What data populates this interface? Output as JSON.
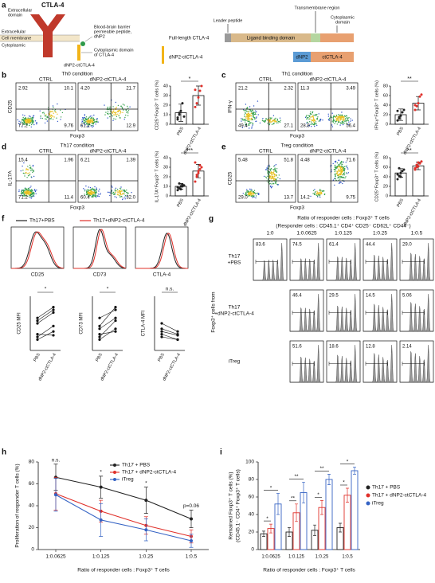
{
  "panel_a": {
    "letter": "a",
    "protein": "CTLA-4",
    "extracellular_domain": [
      "Extracellular",
      "domain"
    ],
    "extracellular": "Extracellular",
    "cell_membrane": "Cell membrane",
    "cytoplasmic": "Cytoplasmic",
    "fusion_label": "dNP2-ctCTLA-4",
    "peptide_note": [
      "Blood-brain barrier",
      "permeable peptide,",
      "dNP2"
    ],
    "cyto_note": [
      "Cytoplasmic domain",
      "of CTLA-4"
    ],
    "leader": "Leader peptide",
    "tm": "Transmembrane region",
    "cyto_domain": [
      "Cytoplasmic",
      "domain"
    ],
    "full_length": "Full-length CTLA-4",
    "lbd": "Ligand binding domain",
    "fusion": "dNP2-ctCTLA-4",
    "dnp2": "dNP2",
    "ctctla4": "ctCTLA-4"
  },
  "panel_b": {
    "letter": "b",
    "title": "Th0 condition",
    "columns": [
      "CTRL",
      "dNP2-ctCTLA-4"
    ],
    "y_label": "CD25",
    "x_label": "Foxp3",
    "quadrants": [
      [
        2.92,
        10.1,
        77.2,
        9.76
      ],
      [
        "4.20",
        21.7,
        61.2,
        12.9
      ]
    ],
    "bar_chart": {
      "type": "bar",
      "y_label": "CD25⁺Foxp3⁺ T cells (%)",
      "categories": [
        "PBS",
        "dNP2-ctCTLA-4"
      ],
      "point_colors": [
        "#222222",
        "#e0302a"
      ],
      "ylim": [
        0,
        40
      ],
      "yticks": [
        0,
        10,
        20,
        30,
        40
      ],
      "means": [
        12,
        30
      ],
      "sd": [
        9,
        10
      ],
      "points": [
        [
          5,
          10,
          14,
          22,
          8,
          7,
          12
        ],
        [
          18,
          22,
          28,
          35,
          40,
          36
        ]
      ],
      "significance": "*"
    }
  },
  "panel_c": {
    "letter": "c",
    "title": "Th1 condition",
    "columns": [
      "CTRL",
      "dNP2-ctCTLA-4"
    ],
    "y_label": "IFN-γ",
    "x_label": "Foxp3",
    "quadrants": [
      [
        21.2,
        2.32,
        49.4,
        27.1
      ],
      [
        11.3,
        3.49,
        28.8,
        56.4
      ]
    ],
    "bar_chart": {
      "type": "bar",
      "y_label": "IFN-γ⁺Foxp3⁺ T cells (%)",
      "categories": [
        "PBS",
        "dNP2-ctCTLA-4"
      ],
      "point_colors": [
        "#222222",
        "#e0302a"
      ],
      "ylim": [
        0,
        80
      ],
      "yticks": [
        0,
        20,
        40,
        60,
        80
      ],
      "means": [
        20,
        44
      ],
      "sd": [
        12,
        14
      ],
      "points": [
        [
          8,
          12,
          18,
          25,
          30,
          28,
          15
        ],
        [
          30,
          38,
          44,
          58,
          62,
          40
        ]
      ],
      "significance": "**"
    }
  },
  "panel_d": {
    "letter": "d",
    "title": "Th17 condition",
    "columns": [
      "CTRL",
      "dNP2-ctCTLA-4"
    ],
    "y_label": "IL-17A",
    "x_label": "Foxp3",
    "quadrants": [
      [
        15.4,
        1.96,
        71.2,
        11.4
      ],
      [
        6.21,
        1.39,
        60.4,
        "32.0"
      ]
    ],
    "bar_chart": {
      "type": "bar",
      "y_label": "IL-17A⁺Foxp3⁺ T cells (%)",
      "categories": [
        "PBS",
        "dNP2-ctCTLA-4"
      ],
      "point_colors": [
        "#222222",
        "#e0302a"
      ],
      "ylim": [
        0,
        40
      ],
      "yticks": [
        0,
        10,
        20,
        30,
        40
      ],
      "means": [
        10,
        26
      ],
      "sd": [
        3,
        7
      ],
      "points": [
        [
          6,
          8,
          10,
          12,
          11,
          9,
          13,
          7,
          10
        ],
        [
          15,
          20,
          24,
          28,
          30,
          35,
          22,
          26,
          32
        ]
      ],
      "significance": "***"
    }
  },
  "panel_e": {
    "letter": "e",
    "title": "Treg condition",
    "columns": [
      "CTRL",
      "dNP2-ctCTLA-4"
    ],
    "y_label": "CD25",
    "x_label": "Foxp3",
    "quadrants": [
      [
        5.48,
        51.8,
        "29.0",
        13.7
      ],
      [
        4.48,
        71.6,
        14.2,
        9.75
      ]
    ],
    "bar_chart": {
      "type": "bar",
      "y_label": "CD25⁺Foxp3⁺ T cells (%)",
      "categories": [
        "PBS",
        "dNP2-ctCTLA-4"
      ],
      "point_colors": [
        "#222222",
        "#e0302a"
      ],
      "ylim": [
        0,
        80
      ],
      "yticks": [
        0,
        20,
        40,
        60,
        80
      ],
      "means": [
        48,
        63
      ],
      "sd": [
        9,
        8
      ],
      "points": [
        [
          35,
          42,
          48,
          52,
          55,
          45,
          58,
          40
        ],
        [
          55,
          60,
          62,
          68,
          72,
          58,
          65,
          70
        ]
      ],
      "significance": "**"
    }
  },
  "panel_f": {
    "letter": "f",
    "legend": [
      {
        "name": "Th17+PBS",
        "color": "#222222"
      },
      {
        "name": "Th17+dNP2-ctCTLA-4",
        "color": "#e0302a"
      }
    ],
    "histogram_labels": [
      "CD25",
      "CD73",
      "CTLA-4"
    ],
    "mfi": {
      "type": "paired",
      "y_labels": [
        "CD25 MFI",
        "CD73 MFI",
        "CTLA-4 MFI"
      ],
      "categories": [
        "PBS",
        "dNP2-ctCTLA-4"
      ],
      "ylim": [
        0,
        100
      ],
      "significance": [
        "*",
        "*",
        "n.s."
      ],
      "pairs": [
        [
          [
            20,
            35
          ],
          [
            25,
            45
          ],
          [
            50,
            70
          ],
          [
            60,
            80
          ],
          [
            30,
            28
          ],
          [
            55,
            75
          ]
        ],
        [
          [
            20,
            40
          ],
          [
            30,
            35
          ],
          [
            40,
            60
          ],
          [
            45,
            80
          ],
          [
            60,
            75
          ],
          [
            25,
            55
          ]
        ],
        [
          [
            50,
            35
          ],
          [
            40,
            30
          ],
          [
            30,
            20
          ],
          [
            25,
            20
          ],
          [
            35,
            28
          ]
        ]
      ]
    }
  },
  "panel_g": {
    "letter": "g",
    "title": "Ratio of responder cells : Foxp3⁺ T cells",
    "subtitle": "(Responder cells : CD45.1⁺ CD4⁺ CD25⁻ CD62L⁺ CD44⁻)",
    "side_label": "Foxp3⁺ cells from",
    "columns": [
      "1:0",
      "1:0.0625",
      "1:0.125",
      "1:0.25",
      "1:0.5"
    ],
    "rows": [
      {
        "label": [
          "Th17",
          "+PBS"
        ],
        "values": [
          83.6,
          74.5,
          61.4,
          44.4,
          "29.0"
        ]
      },
      {
        "label": [
          "Th17",
          "+dNP2-ctCTLA-4"
        ],
        "values": [
          null,
          46.4,
          29.5,
          14.5,
          5.06
        ]
      },
      {
        "label": [
          "iTreg"
        ],
        "values": [
          null,
          51.6,
          18.6,
          12.8,
          2.14
        ]
      }
    ]
  },
  "panel_h": {
    "letter": "h",
    "type": "line",
    "y_label": "Proliferation of responder T cells (%)",
    "x_label": "Ratio of responder cells : Foxp3⁺ T cells",
    "categories": [
      "1:0.0625",
      "1:0.125",
      "1:0.25",
      "1:0.5"
    ],
    "ylim": [
      0,
      80
    ],
    "yticks": [
      0,
      20,
      40,
      60,
      80
    ],
    "series": [
      {
        "name": "Th17 + PBS",
        "color": "#222222",
        "values": [
          66,
          57,
          45,
          28
        ],
        "errors": [
          12,
          10,
          12,
          8
        ]
      },
      {
        "name": "Th17 + dNP2-ctCTLA-4",
        "color": "#e0302a",
        "values": [
          51,
          35,
          22,
          12
        ],
        "errors": [
          15,
          10,
          8,
          6
        ]
      },
      {
        "name": "iTreg",
        "color": "#3563c4",
        "values": [
          50,
          27,
          18,
          8
        ],
        "errors": [
          15,
          15,
          10,
          6
        ]
      }
    ],
    "annotations": [
      "n.s.",
      "*",
      "*",
      "p=0.06"
    ]
  },
  "panel_i": {
    "letter": "i",
    "type": "bar",
    "y_label": [
      "Remained Foxp3⁺ T cells (%)",
      "(CD45.1⁻ CD4⁺ Foxp3⁺ T cells)"
    ],
    "x_label": "Ratio of responder cells : Foxp3⁺ T cells",
    "categories": [
      "1:0.0625",
      "1:0.125",
      "1:0.25",
      "1:0.5"
    ],
    "ylim": [
      0,
      100
    ],
    "yticks": [
      0,
      20,
      40,
      60,
      80,
      100
    ],
    "series": [
      {
        "name": "Th17 + PBS",
        "color": "#222222",
        "values": [
          18,
          20,
          22,
          25
        ],
        "errors": [
          3,
          5,
          6,
          5
        ]
      },
      {
        "name": "Th17 + dNP2-ctCTLA-4",
        "color": "#e0302a",
        "values": [
          24,
          42,
          48,
          62
        ],
        "errors": [
          5,
          10,
          8,
          8
        ]
      },
      {
        "name": "iTreg",
        "color": "#3563c4",
        "values": [
          52,
          65,
          80,
          90
        ],
        "errors": [
          12,
          12,
          6,
          4
        ]
      }
    ],
    "significance": [
      [
        "*",
        "*"
      ],
      [
        "**",
        "**"
      ],
      [
        "*",
        "**"
      ],
      [
        "*",
        "*"
      ]
    ]
  }
}
